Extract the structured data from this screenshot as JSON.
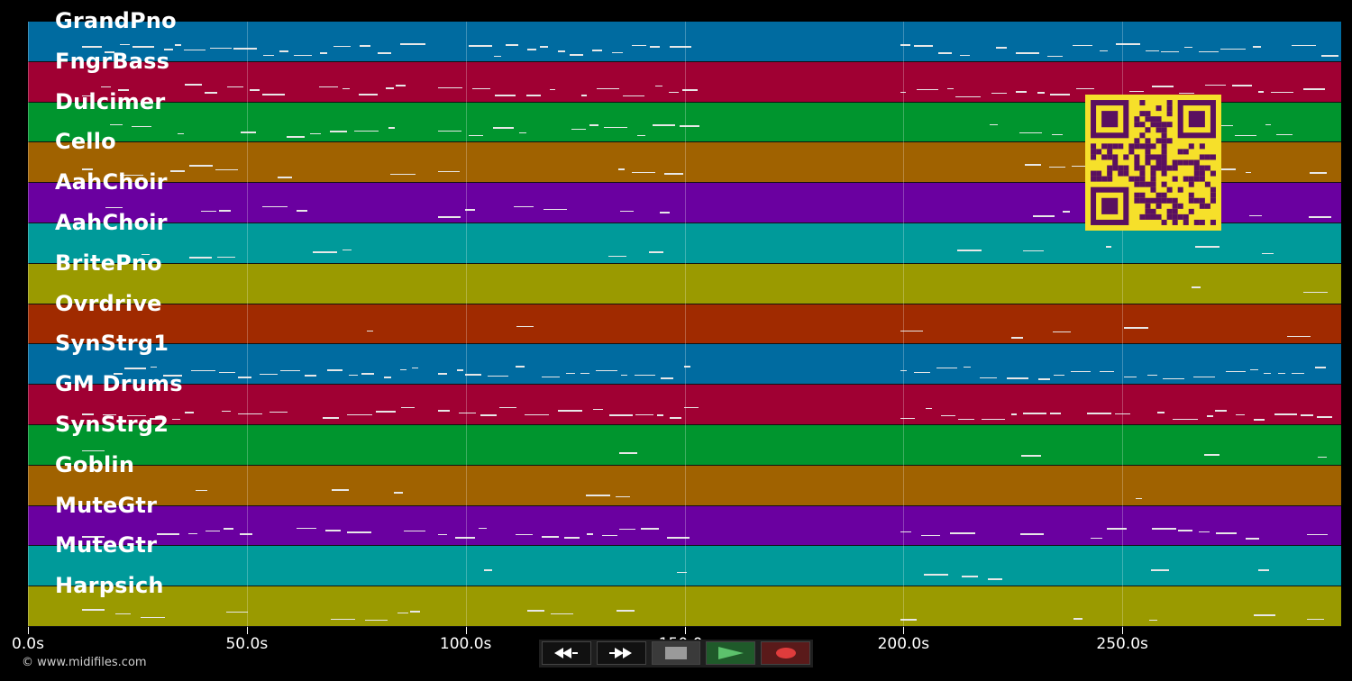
{
  "tracks": [
    {
      "name": "GrandPno",
      "color": "#006ba0"
    },
    {
      "name": "FngrBass",
      "color": "#a00033"
    },
    {
      "name": "Dulcimer",
      "color": "#00952e"
    },
    {
      "name": "Cello",
      "color": "#a06200"
    },
    {
      "name": "AahChoir",
      "color": "#6a00a0"
    },
    {
      "name": "AahChoir",
      "color": "#009a9a"
    },
    {
      "name": "BritePno",
      "color": "#9a9a00"
    },
    {
      "name": "Ovrdrive",
      "color": "#a02a00"
    },
    {
      "name": "SynStrg1",
      "color": "#006ba0"
    },
    {
      "name": "GM Drums",
      "color": "#a00033"
    },
    {
      "name": "SynStrg2",
      "color": "#00952e"
    },
    {
      "name": "Goblin",
      "color": "#a06200"
    },
    {
      "name": "MuteGtr",
      "color": "#6a00a0"
    },
    {
      "name": "MuteGtr",
      "color": "#009a9a"
    },
    {
      "name": "Harpsich",
      "color": "#9a9a00"
    }
  ],
  "axis": {
    "ticks": [
      "0.0s",
      "50.0s",
      "100.0s",
      "150.0s",
      "200.0s",
      "250.0s"
    ],
    "seconds_visible": 300
  },
  "transport": {
    "buttons": [
      {
        "name": "rewind",
        "icon": "rewind-icon"
      },
      {
        "name": "fast-forward",
        "icon": "fast-forward-icon"
      },
      {
        "name": "stop",
        "icon": "stop-icon"
      },
      {
        "name": "play",
        "icon": "play-icon"
      },
      {
        "name": "record",
        "icon": "record-icon"
      }
    ]
  },
  "footer": {
    "copyright": "© www.midifiles.com"
  },
  "colors": {
    "note": "#e8e8e8",
    "qr_bg": "#f6e02a",
    "qr_fg": "#5a1060"
  }
}
